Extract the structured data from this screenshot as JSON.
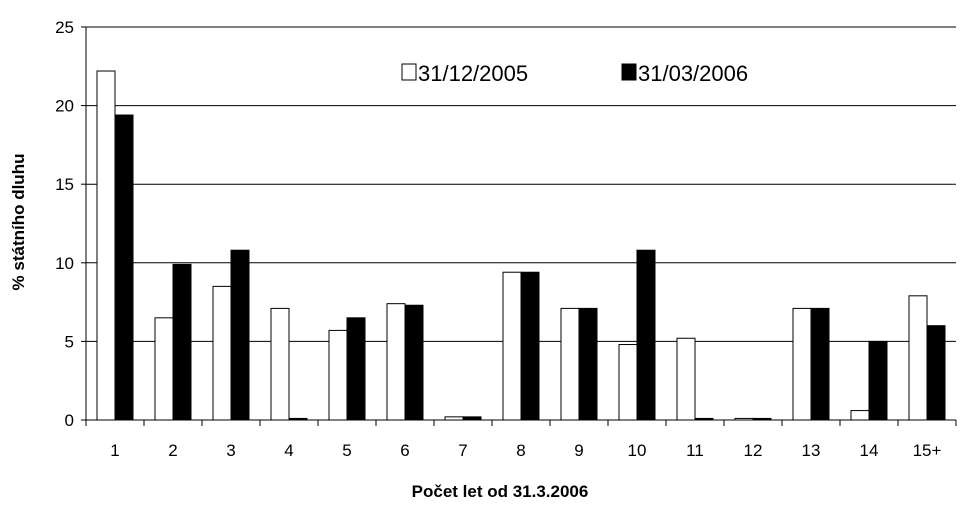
{
  "chart_data": {
    "type": "bar",
    "title": "",
    "xlabel": "Počet let od 31.3.2006",
    "ylabel": "% státního dluhu",
    "ylim": [
      0,
      25
    ],
    "yticks": [
      "0",
      "5",
      "10",
      "15",
      "20",
      "25"
    ],
    "grid": "horizontal",
    "legend_position": "top-center",
    "categories": [
      "1",
      "2",
      "3",
      "4",
      "5",
      "6",
      "7",
      "8",
      "9",
      "10",
      "11",
      "12",
      "13",
      "14",
      "15+"
    ],
    "series": [
      {
        "name": "31/12/2005",
        "color": "#ffffff",
        "values": [
          22.2,
          6.5,
          8.5,
          7.1,
          5.7,
          7.4,
          0.2,
          9.4,
          7.1,
          4.8,
          5.2,
          0.1,
          7.1,
          0.6,
          7.9
        ]
      },
      {
        "name": "31/03/2006",
        "color": "#000000",
        "values": [
          19.4,
          9.9,
          10.8,
          0.1,
          6.5,
          7.3,
          0.2,
          9.4,
          7.1,
          10.8,
          0.1,
          0.1,
          7.1,
          5.0,
          6.0
        ]
      }
    ]
  }
}
